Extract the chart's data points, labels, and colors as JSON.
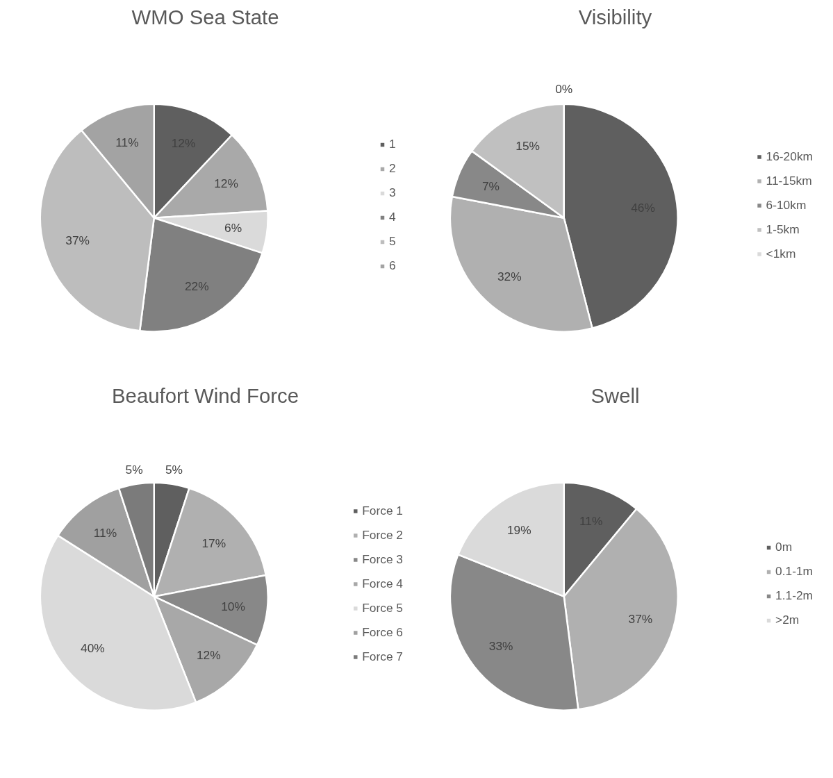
{
  "chart_data": [
    {
      "type": "pie",
      "title": "WMO Sea State",
      "categories": [
        "1",
        "2",
        "3",
        "4",
        "5",
        "6"
      ],
      "values": [
        12,
        12,
        6,
        22,
        37,
        11
      ],
      "value_labels": [
        "12%",
        "12%",
        "6%",
        "22%",
        "37%",
        "11%"
      ],
      "colors": [
        "#5f5f5f",
        "#a9a9a9",
        "#dadada",
        "#808080",
        "#bdbdbd",
        "#a3a3a3"
      ],
      "legend": "right"
    },
    {
      "type": "pie",
      "title": "Visibility",
      "categories": [
        "16-20km",
        "11-15km",
        "6-10km",
        "1-5km",
        "<1km"
      ],
      "values": [
        46,
        32,
        7,
        15,
        0
      ],
      "value_labels": [
        "46%",
        "32%",
        "7%",
        "15%",
        "0%"
      ],
      "colors": [
        "#5f5f5f",
        "#b0b0b0",
        "#888888",
        "#c0c0c0",
        "#dadada"
      ],
      "legend": "right"
    },
    {
      "type": "pie",
      "title": "Beaufort Wind Force",
      "categories": [
        "Force 1",
        "Force 2",
        "Force 3",
        "Force 4",
        "Force 5",
        "Force 6",
        "Force 7"
      ],
      "values": [
        5,
        17,
        10,
        12,
        40,
        11,
        5
      ],
      "value_labels": [
        "5%",
        "17%",
        "10%",
        "12%",
        "40%",
        "11%",
        "5%"
      ],
      "colors": [
        "#5f5f5f",
        "#b0b0b0",
        "#888888",
        "#a8a8a8",
        "#dadada",
        "#a0a0a0",
        "#7b7b7b"
      ],
      "legend": "right"
    },
    {
      "type": "pie",
      "title": "Swell",
      "categories": [
        "0m",
        "0.1-1m",
        "1.1-2m",
        ">2m"
      ],
      "values": [
        11,
        37,
        33,
        19
      ],
      "value_labels": [
        "11%",
        "37%",
        "33%",
        "19%"
      ],
      "colors": [
        "#5f5f5f",
        "#b0b0b0",
        "#888888",
        "#dadada"
      ],
      "legend": "right"
    }
  ]
}
